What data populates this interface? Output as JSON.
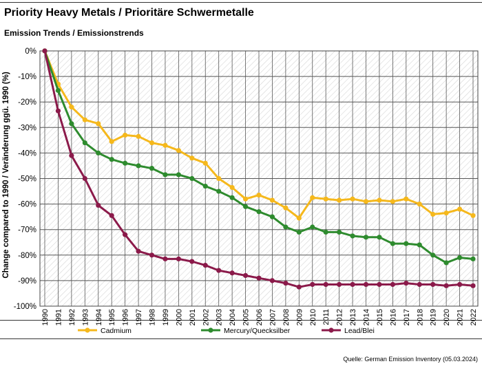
{
  "header": {
    "title": "Priority Heavy Metals / Prioritäre Schwermetalle",
    "subtitle": "Emission Trends / Emissionstrends"
  },
  "footer": {
    "source": "Quelle: German Emission Inventory (05.03.2024)"
  },
  "chart_data": {
    "type": "line",
    "title": "Priority Heavy Metals / Prioritäre Schwermetalle",
    "subtitle": "Emission Trends / Emissionstrends",
    "xlabel": "",
    "ylabel": "Change compared to 1990 / Veränderung ggü. 1990 (%)",
    "ylim": [
      -100,
      0
    ],
    "y_ticks": [
      0,
      -10,
      -20,
      -30,
      -40,
      -50,
      -60,
      -70,
      -80,
      -90,
      -100
    ],
    "y_tick_labels": [
      "0%",
      "-10%",
      "-20%",
      "-30%",
      "-40%",
      "-50%",
      "-60%",
      "-70%",
      "-80%",
      "-90%",
      "-100%"
    ],
    "grid": true,
    "legend_position": "bottom",
    "x": [
      "1990",
      "1991",
      "1992",
      "1993",
      "1994",
      "1995",
      "1996",
      "1997",
      "1998",
      "1999",
      "2000",
      "2001",
      "2002",
      "2003",
      "2004",
      "2005",
      "2006",
      "2007",
      "2008",
      "2009",
      "2010",
      "2011",
      "2012",
      "2013",
      "2014",
      "2015",
      "2016",
      "2017",
      "2018",
      "2019",
      "2020",
      "2021",
      "2022"
    ],
    "series": [
      {
        "name": "Cadmium",
        "color": "#f5b81c",
        "values": [
          0,
          -13,
          -22,
          -27,
          -28.5,
          -35.5,
          -33,
          -33.5,
          -36,
          -37,
          -39,
          -42,
          -44,
          -50,
          -53.5,
          -58,
          -56.5,
          -58.5,
          -61.5,
          -65.5,
          -57.5,
          -58,
          -58.5,
          -58,
          -59,
          -58.5,
          -59,
          -58,
          -60,
          -64,
          -63.5,
          -62,
          -64.5
        ]
      },
      {
        "name": "Mercury/Quecksilber",
        "color": "#2e8b2e",
        "values": [
          0,
          -15.5,
          -28.5,
          -36,
          -40,
          -42.5,
          -44,
          -45,
          -46,
          -48.5,
          -48.5,
          -50,
          -53,
          -55,
          -57.5,
          -61,
          -63,
          -65,
          -69,
          -71,
          -69,
          -71,
          -71,
          -72.5,
          -73,
          -73,
          -75.5,
          -75.5,
          -76,
          -80,
          -83,
          -81,
          -81.5
        ]
      },
      {
        "name": "Lead/Blei",
        "color": "#8b1a4a",
        "values": [
          0,
          -23.5,
          -41,
          -50,
          -60.5,
          -64.5,
          -72,
          -78.5,
          -80,
          -81.5,
          -81.5,
          -82.5,
          -84,
          -86,
          -87,
          -88,
          -89,
          -90,
          -91,
          -92.5,
          -91.5,
          -91.5,
          -91.5,
          -91.5,
          -91.5,
          -91.5,
          -91.5,
          -91,
          -91.5,
          -91.5,
          -92,
          -91.5,
          -92
        ]
      }
    ]
  }
}
